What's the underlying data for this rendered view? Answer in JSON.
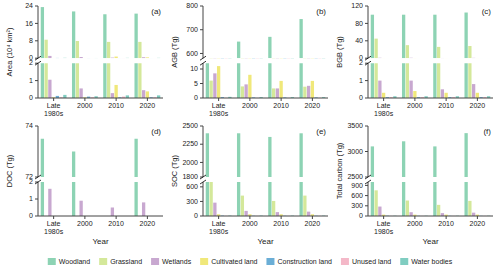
{
  "chart_data": [
    {
      "type": "bar",
      "title": "(a)",
      "ylabel": "Area (10⁴ km²)",
      "categories": [
        "Late\n1980s",
        "2000",
        "2010",
        "2020"
      ],
      "series": [
        {
          "name": "Woodland",
          "color": "#8dd3b4",
          "values": [
            23.5,
            21.5,
            20.2,
            20.5
          ]
        },
        {
          "name": "Grassland",
          "color": "#d4e89a",
          "values": [
            8.5,
            7.9,
            7.5,
            7.5
          ]
        },
        {
          "name": "Wetlands",
          "color": "#c8a8d0",
          "values": [
            1.05,
            0.55,
            0.28,
            0.45
          ]
        },
        {
          "name": "Cultivated land",
          "color": "#f0e87a",
          "values": [
            0.04,
            0.04,
            0.75,
            0.38
          ]
        },
        {
          "name": "Construction land",
          "color": "#6baed6",
          "values": [
            0.12,
            0.08,
            0.04,
            0.04
          ]
        },
        {
          "name": "Unused land",
          "color": "#f4b8c8",
          "values": [
            0.04,
            0.04,
            0.08,
            0.04
          ]
        },
        {
          "name": "Water bodies",
          "color": "#80cdc1",
          "values": [
            0.18,
            0.1,
            0.15,
            0.15
          ]
        }
      ],
      "ylim": [
        [
          0,
          2
        ],
        [
          0,
          24
        ]
      ],
      "yticks": [
        [
          0,
          1,
          2
        ],
        [
          0,
          8,
          16,
          24
        ]
      ],
      "legend": "bottom"
    },
    {
      "type": "bar",
      "title": "(b)",
      "ylabel": "AGB (Tg)",
      "categories": [
        "Late\n1980s",
        "2000",
        "2010",
        "2020"
      ],
      "series": [
        {
          "name": "Woodland",
          "color": "#8dd3b4",
          "values": [
            580,
            650,
            670,
            745
          ]
        },
        {
          "name": "Grassland",
          "color": "#d4e89a",
          "values": [
            6.0,
            4.0,
            3.3,
            3.9
          ]
        },
        {
          "name": "Wetlands",
          "color": "#c8a8d0",
          "values": [
            8.5,
            4.7,
            3.3,
            4.2
          ]
        },
        {
          "name": "Cultivated land",
          "color": "#f0e87a",
          "values": [
            11.0,
            8.0,
            5.9,
            5.9
          ]
        },
        {
          "name": "Construction land",
          "color": "#6baed6",
          "values": [
            0.3,
            0.2,
            0.2,
            0.2
          ]
        },
        {
          "name": "Unused land",
          "color": "#f4b8c8",
          "values": [
            0.05,
            0.05,
            0.05,
            0.05
          ]
        },
        {
          "name": "Water bodies",
          "color": "#80cdc1",
          "values": [
            0.4,
            0.3,
            0.3,
            0.3
          ]
        }
      ],
      "ylim": [
        [
          0,
          12
        ],
        [
          580,
          800
        ]
      ],
      "yticks": [
        [
          0,
          5,
          10
        ],
        [
          600,
          700,
          800
        ]
      ]
    },
    {
      "type": "bar",
      "title": "(c)",
      "ylabel": "BGB (Tg)",
      "categories": [
        "Late\n1980s",
        "2000",
        "2010",
        "2020"
      ],
      "series": [
        {
          "name": "Woodland",
          "color": "#8dd3b4",
          "values": [
            100,
            100,
            100,
            105
          ]
        },
        {
          "name": "Grassland",
          "color": "#d4e89a",
          "values": [
            45,
            30,
            26,
            28
          ]
        },
        {
          "name": "Wetlands",
          "color": "#c8a8d0",
          "values": [
            1.0,
            1.0,
            0.5,
            0.8
          ]
        },
        {
          "name": "Cultivated land",
          "color": "#f0e87a",
          "values": [
            0.3,
            0.4,
            0.3,
            0.3
          ]
        },
        {
          "name": "Construction land",
          "color": "#6baed6",
          "values": [
            0.05,
            0.05,
            0.05,
            0.05
          ]
        },
        {
          "name": "Unused land",
          "color": "#f4b8c8",
          "values": [
            0.05,
            0.05,
            0.05,
            0.05
          ]
        },
        {
          "name": "Water bodies",
          "color": "#80cdc1",
          "values": [
            0.1,
            0.1,
            0.1,
            0.1
          ]
        }
      ],
      "ylim": [
        [
          0,
          2
        ],
        [
          0,
          120
        ]
      ],
      "yticks": [
        [
          0,
          1,
          2
        ],
        [
          0,
          40,
          80,
          120
        ]
      ]
    },
    {
      "type": "bar",
      "title": "(d)",
      "ylabel": "DOC (Tg)",
      "xlabel": "Year",
      "categories": [
        "Late\n1980s",
        "2000",
        "2010",
        "2020"
      ],
      "series": [
        {
          "name": "Woodland",
          "color": "#8dd3b4",
          "values": [
            73.5,
            73.0,
            0.0,
            73.5
          ]
        },
        {
          "name": "Grassland",
          "color": "#d4e89a",
          "values": [
            0.0,
            0.0,
            0.0,
            0.0
          ]
        },
        {
          "name": "Wetlands",
          "color": "#c8a8d0",
          "values": [
            1.6,
            0.9,
            0.5,
            0.8
          ]
        },
        {
          "name": "Cultivated land",
          "color": "#f0e87a",
          "values": [
            0.0,
            0.0,
            0.0,
            0.0
          ]
        },
        {
          "name": "Construction land",
          "color": "#6baed6",
          "values": [
            0.0,
            0.0,
            0.0,
            0.0
          ]
        },
        {
          "name": "Unused land",
          "color": "#f4b8c8",
          "values": [
            0.0,
            0.0,
            0.0,
            0.0
          ]
        },
        {
          "name": "Water bodies",
          "color": "#80cdc1",
          "values": [
            0.0,
            0.0,
            0.0,
            0.0
          ]
        }
      ],
      "ylim": [
        [
          0,
          2
        ],
        [
          72,
          74
        ]
      ],
      "yticks": [
        [
          0,
          1,
          2
        ],
        [
          72,
          74
        ]
      ]
    },
    {
      "type": "bar",
      "title": "(e)",
      "ylabel": "SOC (Tg)",
      "xlabel": "Year",
      "categories": [
        "Late\n1980s",
        "2000",
        "2010",
        "2020"
      ],
      "series": [
        {
          "name": "Woodland",
          "color": "#8dd3b4",
          "values": [
            2400,
            2400,
            2350,
            2400
          ]
        },
        {
          "name": "Grassland",
          "color": "#d4e89a",
          "values": [
            700,
            420,
            310,
            420
          ]
        },
        {
          "name": "Wetlands",
          "color": "#c8a8d0",
          "values": [
            275,
            105,
            80,
            90
          ]
        },
        {
          "name": "Cultivated land",
          "color": "#f0e87a",
          "values": [
            35,
            35,
            35,
            35
          ]
        },
        {
          "name": "Construction land",
          "color": "#6baed6",
          "values": [
            8,
            5,
            5,
            5
          ]
        },
        {
          "name": "Unused land",
          "color": "#f4b8c8",
          "values": [
            3,
            3,
            3,
            3
          ]
        },
        {
          "name": "Water bodies",
          "color": "#80cdc1",
          "values": [
            8,
            8,
            8,
            8
          ]
        }
      ],
      "ylim": [
        [
          0,
          700
        ],
        [
          1800,
          2500
        ]
      ],
      "yticks": [
        [
          0,
          300,
          600
        ],
        [
          1800,
          2000,
          2250,
          2500
        ]
      ]
    },
    {
      "type": "bar",
      "title": "(f)",
      "ylabel": "Total carbon (Tg)",
      "xlabel": "Year",
      "categories": [
        "Late\n1980s",
        "2000",
        "2010",
        "2020"
      ],
      "series": [
        {
          "name": "Woodland",
          "color": "#8dd3b4",
          "values": [
            3100,
            3200,
            3100,
            3360
          ]
        },
        {
          "name": "Grassland",
          "color": "#d4e89a",
          "values": [
            755,
            455,
            328,
            445
          ]
        },
        {
          "name": "Wetlands",
          "color": "#c8a8d0",
          "values": [
            278,
            112,
            85,
            98
          ]
        },
        {
          "name": "Cultivated land",
          "color": "#f0e87a",
          "values": [
            40,
            40,
            40,
            40
          ]
        },
        {
          "name": "Construction land",
          "color": "#6baed6",
          "values": [
            8,
            5,
            5,
            5
          ]
        },
        {
          "name": "Unused land",
          "color": "#f4b8c8",
          "values": [
            3,
            3,
            3,
            3
          ]
        },
        {
          "name": "Water bodies",
          "color": "#80cdc1",
          "values": [
            8,
            8,
            8,
            8
          ]
        }
      ],
      "ylim": [
        [
          0,
          1000
        ],
        [
          2500,
          3500
        ]
      ],
      "yticks": [
        [
          0,
          300,
          600,
          900
        ],
        [
          2500,
          3000,
          3500
        ]
      ]
    }
  ]
}
